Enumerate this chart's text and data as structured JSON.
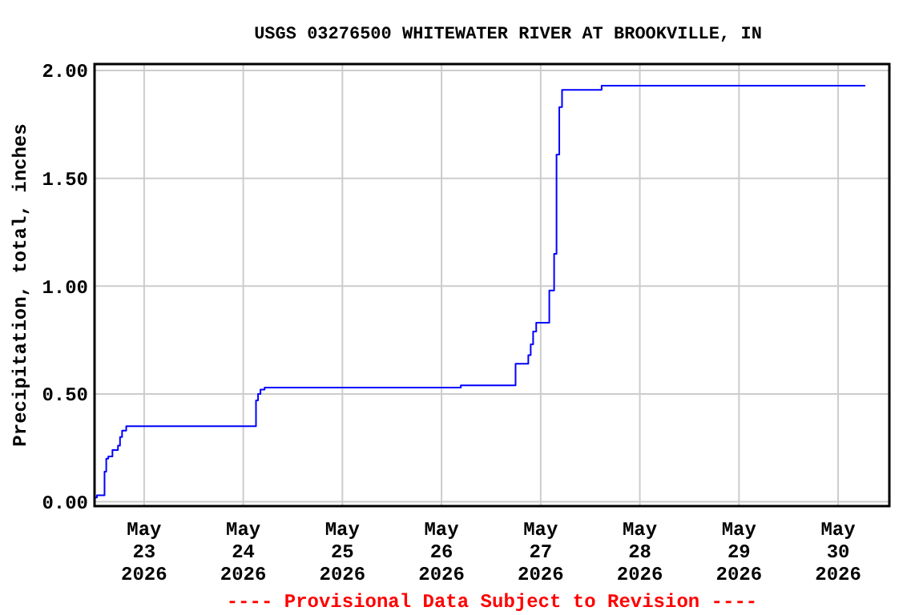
{
  "chart_data": {
    "type": "step",
    "title": "USGS 03276500 WHITEWATER RIVER AT BROOKVILLE, IN",
    "ylabel": "Precipitation, total, inches",
    "annotations": [
      "---- Provisional Data Subject to Revision ----"
    ],
    "x": [
      "2026-05-22T12:10",
      "2026-05-22T12:35",
      "2026-05-22T14:25",
      "2026-05-22T14:50",
      "2026-05-22T15:20",
      "2026-05-22T16:20",
      "2026-05-22T17:40",
      "2026-05-22T18:10",
      "2026-05-22T18:40",
      "2026-05-22T19:40",
      "2026-05-24T03:05",
      "2026-05-24T03:35",
      "2026-05-24T04:10",
      "2026-05-24T05:10",
      "2026-05-26T04:40",
      "2026-05-26T17:55",
      "2026-05-26T21:00",
      "2026-05-26T21:35",
      "2026-05-26T22:10",
      "2026-05-26T22:55",
      "2026-05-27T02:05",
      "2026-05-27T03:15",
      "2026-05-27T03:50",
      "2026-05-27T04:30",
      "2026-05-27T05:10",
      "2026-05-27T14:45",
      "2026-05-30T06:35"
    ],
    "series": [
      {
        "color": "#0000ff",
        "values": [
          0.02,
          0.03,
          0.14,
          0.2,
          0.21,
          0.24,
          0.26,
          0.3,
          0.33,
          0.35,
          0.47,
          0.5,
          0.52,
          0.53,
          0.54,
          0.64,
          0.68,
          0.73,
          0.79,
          0.83,
          0.98,
          1.15,
          1.61,
          1.83,
          1.91,
          1.93,
          1.93
        ]
      }
    ],
    "xlim": [
      "2026-05-22T12:00",
      "2026-05-30T12:24"
    ],
    "xticks": [
      {
        "value": "2026-05-23",
        "label": "May\n23\n2026"
      },
      {
        "value": "2026-05-24",
        "label": "May\n24\n2026"
      },
      {
        "value": "2026-05-25",
        "label": "May\n25\n2026"
      },
      {
        "value": "2026-05-26",
        "label": "May\n26\n2026"
      },
      {
        "value": "2026-05-27",
        "label": "May\n27\n2026"
      },
      {
        "value": "2026-05-28",
        "label": "May\n28\n2026"
      },
      {
        "value": "2026-05-29",
        "label": "May\n29\n2026"
      },
      {
        "value": "2026-05-30",
        "label": "May\n30\n2026"
      }
    ],
    "ylim": [
      -0.02,
      2.03
    ],
    "yticks": [
      {
        "value": 0,
        "label": "0.00"
      },
      {
        "value": 0.5,
        "label": "0.50"
      },
      {
        "value": 1,
        "label": "1.00"
      },
      {
        "value": 1.5,
        "label": "1.50"
      },
      {
        "value": 2,
        "label": "2.00"
      }
    ],
    "grid": true,
    "marker": "none",
    "line_style": "solid"
  }
}
